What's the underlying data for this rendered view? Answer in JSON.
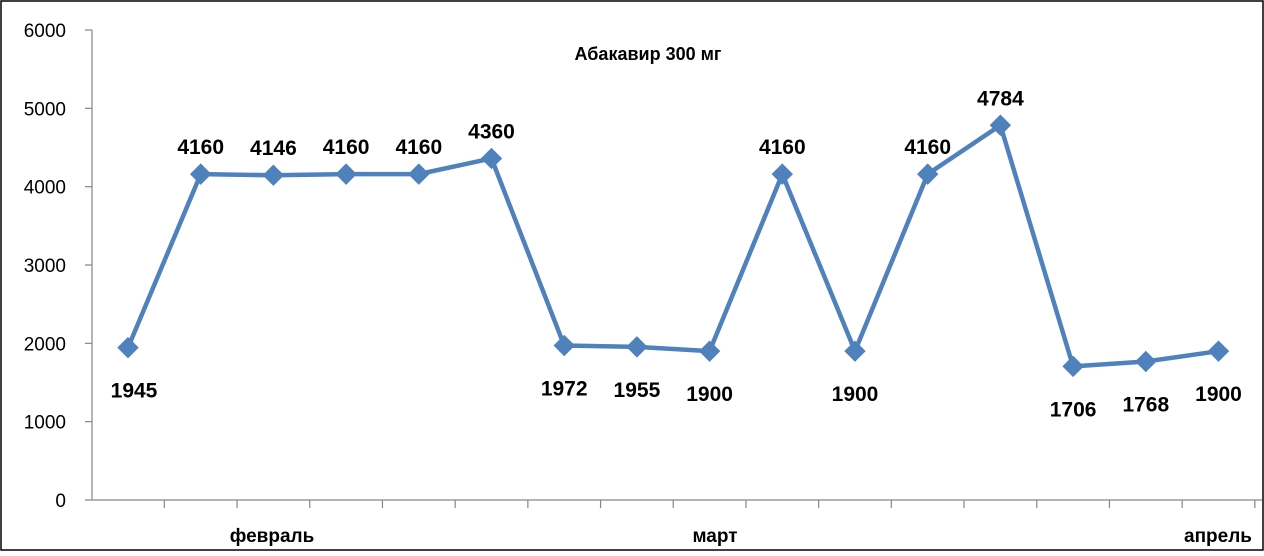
{
  "chart_data": {
    "type": "line",
    "title": "Абакавир 300 мг",
    "xlabel": "",
    "ylabel": "",
    "ylim": [
      0,
      6000
    ],
    "yticks": [
      0,
      1000,
      2000,
      3000,
      4000,
      5000,
      6000
    ],
    "ytick_labels": [
      "0",
      "1000",
      "2000",
      "3000",
      "4000",
      "5000",
      "6000"
    ],
    "category_labels": [
      "февраль",
      "март",
      "апрель"
    ],
    "grid": false,
    "legend": "none",
    "series": [
      {
        "color": "#4F81BD",
        "marker": "diamond",
        "values": [
          1945,
          4160,
          4146,
          4160,
          4160,
          4360,
          1972,
          1955,
          1900,
          4160,
          1900,
          4160,
          4784,
          1706,
          1768,
          1900
        ],
        "data_labels": [
          "1945",
          "4160",
          "4146",
          "4160",
          "4160",
          "4360",
          "1972",
          "1955",
          "1900",
          "4160",
          "1900",
          "4160",
          "4784",
          "1706",
          "1768",
          "1900"
        ]
      }
    ]
  }
}
